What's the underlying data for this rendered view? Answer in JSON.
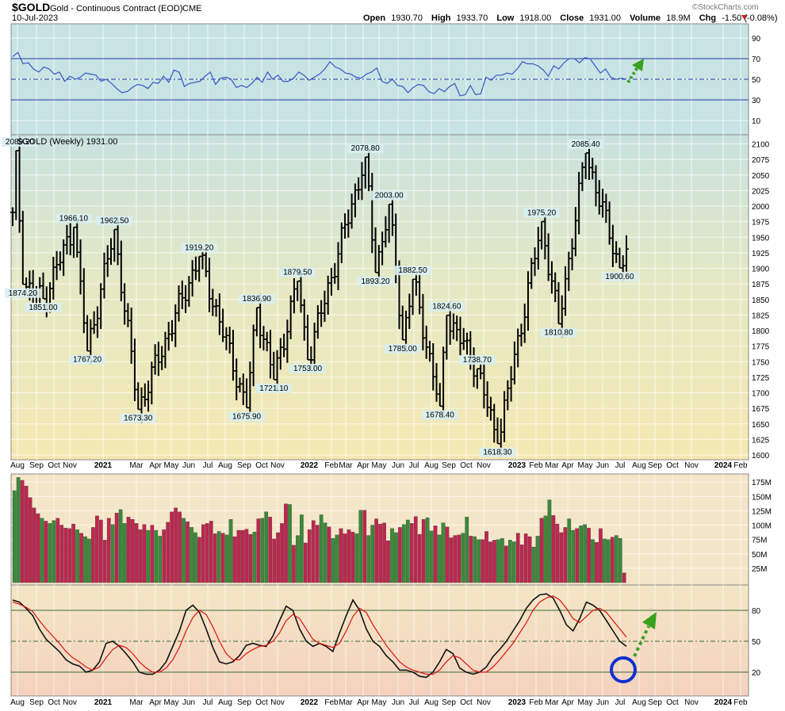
{
  "header": {
    "symbol": "$GOLD",
    "name": "Gold - Continuous Contract (EOD)",
    "exchange": "CME",
    "date": "10-Jul-2023",
    "open_label": "Open",
    "open": "1930.70",
    "high_label": "High",
    "high": "1933.70",
    "low_label": "Low",
    "low": "1918.00",
    "close_label": "Close",
    "close": "1931.00",
    "volume_label": "Volume",
    "volume": "18.9M",
    "chg_label": "Chg",
    "chg": "-1.50 (-0.08%)",
    "watermark": "©StockCharts.com"
  },
  "colors": {
    "up_volume": "#3a8a3a",
    "down_volume": "#c0254f",
    "rsi_line": "#3a55c8",
    "stoch_fast": "#111111",
    "stoch_slow": "#e01010",
    "arrow": "#3aa020",
    "circle": "#1030d0"
  },
  "chart_data": [
    {
      "type": "line",
      "panel": "rsi",
      "y_ticks": [
        "90",
        "70",
        "50",
        "30",
        "10"
      ],
      "ylim": [
        0,
        100
      ],
      "reference_lines": [
        70,
        50,
        30
      ],
      "series": [
        {
          "values": [
            72,
            76,
            65,
            66,
            60,
            57,
            62,
            60,
            55,
            57,
            48,
            53,
            50,
            52,
            56,
            55,
            54,
            48,
            50,
            46,
            41,
            37,
            38,
            42,
            45,
            44,
            41,
            47,
            46,
            53,
            47,
            59,
            57,
            43,
            46,
            47,
            48,
            53,
            57,
            45,
            51,
            52,
            50,
            42,
            44,
            42,
            46,
            52,
            47,
            57,
            50,
            54,
            48,
            48,
            51,
            57,
            54,
            49,
            52,
            55,
            60,
            67,
            62,
            60,
            56,
            55,
            52,
            51,
            55,
            57,
            61,
            48,
            46,
            50,
            44,
            43,
            37,
            42,
            45,
            44,
            38,
            36,
            41,
            38,
            43,
            46,
            34,
            35,
            44,
            35,
            36,
            52,
            49,
            54,
            54,
            56,
            55,
            60,
            67,
            65,
            65,
            63,
            59,
            53,
            63,
            60,
            66,
            70,
            70,
            66,
            71,
            70,
            63,
            56,
            60,
            52,
            50,
            51,
            50
          ]
        }
      ]
    },
    {
      "type": "candlestick",
      "panel": "price",
      "title": "$GOLD (Weekly) 1931.00",
      "y_ticks": [
        "2100",
        "2075",
        "2050",
        "2025",
        "2000",
        "1975",
        "1950",
        "1925",
        "1900",
        "1875",
        "1850",
        "1825",
        "1800",
        "1775",
        "1750",
        "1725",
        "1700",
        "1675",
        "1650",
        "1625",
        "1600"
      ],
      "ylim": [
        1598,
        2110
      ],
      "closes": [
        1990,
        2060,
        1950,
        2040,
        1930,
        1960,
        1890,
        1940,
        1878,
        1870,
        1900,
        1930,
        1905,
        1910,
        1880,
        1850,
        1840,
        1790,
        1860,
        1900,
        1835,
        1890,
        1900,
        1840,
        1860,
        1800,
        1760,
        1740,
        1700,
        1740,
        1715,
        1780,
        1760,
        1790,
        1780,
        1810,
        1870,
        1890,
        1900,
        1910,
        1880,
        1800,
        1770,
        1790,
        1810,
        1830,
        1810,
        1820,
        1760,
        1800,
        1810,
        1830,
        1730,
        1750,
        1760,
        1790,
        1810,
        1790,
        1830,
        1870,
        1775,
        1790,
        1770,
        1810,
        1790,
        1850,
        1800,
        1820,
        1810,
        1790,
        1820,
        1800,
        1830,
        1865,
        1910,
        1965,
        1960,
        1940,
        1920,
        1900,
        1940,
        1930,
        1860,
        1840,
        1810,
        1830,
        1870,
        1860,
        1830,
        1820,
        1780,
        1730,
        1710,
        1720,
        1780,
        1800,
        1810,
        1760,
        1730,
        1700,
        1670,
        1650,
        1700,
        1720,
        1680,
        1660,
        1640,
        1770,
        1760,
        1800,
        1810,
        1830,
        1800,
        1820,
        1880,
        1920,
        1930,
        1900,
        1860,
        1840,
        1820,
        1870,
        1960,
        1980,
        1990,
        2000,
        2020,
        2010,
        1990,
        2000,
        1970,
        1940,
        1970,
        1950,
        1920,
        1930,
        1925,
        1931
      ],
      "annotations": [
        {
          "label": "2089.20",
          "i": 1,
          "hi": true
        },
        {
          "label": "1874.20",
          "i": 3,
          "hi": false
        },
        {
          "label": "1851.00",
          "i": 9,
          "hi": false
        },
        {
          "label": "1966.10",
          "i": 18,
          "hi": true
        },
        {
          "label": "1767.20",
          "i": 22,
          "hi": false
        },
        {
          "label": "1962.50",
          "i": 30,
          "hi": true
        },
        {
          "label": "1673.30",
          "i": 37,
          "hi": false
        },
        {
          "label": "1919.20",
          "i": 55,
          "hi": true
        },
        {
          "label": "1675.90",
          "i": 69,
          "hi": false
        },
        {
          "label": "1836.90",
          "i": 72,
          "hi": true
        },
        {
          "label": "1721.10",
          "i": 77,
          "hi": false
        },
        {
          "label": "1879.50",
          "i": 84,
          "hi": true
        },
        {
          "label": "1753.00",
          "i": 87,
          "hi": false
        },
        {
          "label": "2078.80",
          "i": 104,
          "hi": true
        },
        {
          "label": "1893.20",
          "i": 107,
          "hi": false
        },
        {
          "label": "2003.00",
          "i": 111,
          "hi": true
        },
        {
          "label": "1882.50",
          "i": 118,
          "hi": true
        },
        {
          "label": "1785.00",
          "i": 115,
          "hi": false
        },
        {
          "label": "1824.60",
          "i": 128,
          "hi": true
        },
        {
          "label": "1678.40",
          "i": 126,
          "hi": false
        },
        {
          "label": "1738.70",
          "i": 137,
          "hi": true
        },
        {
          "label": "1618.30",
          "i": 143,
          "hi": false
        },
        {
          "label": "1975.20",
          "i": 156,
          "hi": true
        },
        {
          "label": "1810.80",
          "i": 161,
          "hi": false
        },
        {
          "label": "2085.40",
          "i": 169,
          "hi": true
        },
        {
          "label": "1900.60",
          "i": 179,
          "hi": false
        }
      ],
      "key_points": [
        [
          0,
          1990
        ],
        [
          1,
          2089.2
        ],
        [
          3,
          1874.2
        ],
        [
          9,
          1851
        ],
        [
          18,
          1966.1
        ],
        [
          22,
          1767.2
        ],
        [
          30,
          1962.5
        ],
        [
          37,
          1673.3
        ],
        [
          55,
          1919.2
        ],
        [
          69,
          1675.9
        ],
        [
          72,
          1836.9
        ],
        [
          77,
          1721.1
        ],
        [
          84,
          1879.5
        ],
        [
          87,
          1753
        ],
        [
          104,
          2078.8
        ],
        [
          107,
          1893.2
        ],
        [
          111,
          2003
        ],
        [
          115,
          1785
        ],
        [
          118,
          1882.5
        ],
        [
          126,
          1678.4
        ],
        [
          128,
          1824.6
        ],
        [
          137,
          1738.7
        ],
        [
          143,
          1618.3
        ],
        [
          156,
          1975.2
        ],
        [
          161,
          1810.8
        ],
        [
          169,
          2085.4
        ],
        [
          179,
          1900.6
        ],
        [
          181,
          1931
        ]
      ]
    },
    {
      "type": "bar",
      "panel": "volume",
      "y_ticks": [
        "175M",
        "150M",
        "125M",
        "100M",
        "75M",
        "50M",
        "25M"
      ],
      "ylim": [
        0,
        190
      ],
      "values": [
        160,
        183,
        178,
        168,
        148,
        130,
        120,
        112,
        107,
        103,
        108,
        112,
        100,
        95,
        94,
        102,
        92,
        86,
        80,
        76,
        96,
        116,
        109,
        74,
        112,
        101,
        121,
        127,
        103,
        114,
        110,
        103,
        92,
        101,
        91,
        100,
        91,
        81,
        92,
        105,
        123,
        130,
        123,
        112,
        106,
        96,
        87,
        79,
        101,
        103,
        107,
        85,
        89,
        86,
        83,
        110,
        80,
        91,
        91,
        93,
        84,
        88,
        111,
        112,
        123,
        114,
        76,
        87,
        103,
        137,
        136,
        65,
        82,
        118,
        69,
        92,
        108,
        100,
        118,
        104,
        97,
        77,
        83,
        94,
        85,
        92,
        88,
        85,
        126,
        126,
        82,
        100,
        111,
        102,
        104,
        73,
        94,
        87,
        96,
        101,
        109,
        103,
        115,
        84,
        110,
        113,
        90,
        99,
        83,
        104,
        97,
        78,
        82,
        83,
        86,
        114,
        81,
        80,
        75,
        75,
        89,
        71,
        74,
        75,
        77,
        64,
        74,
        71,
        86,
        66,
        85,
        80,
        62,
        81,
        112,
        116,
        144,
        117,
        102,
        87,
        96,
        111,
        91,
        94,
        99,
        101,
        95,
        75,
        70,
        94,
        76,
        75,
        79,
        82,
        77,
        17
      ]
    },
    {
      "type": "line",
      "panel": "stochastic",
      "y_ticks": [
        "80",
        "50",
        "20"
      ],
      "ylim": [
        0,
        105
      ],
      "reference_lines": [
        80,
        50,
        20
      ],
      "series": [
        {
          "values": [
            90,
            88,
            82,
            75,
            62,
            52,
            46,
            40,
            32,
            28,
            26,
            20,
            22,
            30,
            48,
            50,
            45,
            38,
            30,
            20,
            18,
            18,
            22,
            30,
            45,
            60,
            80,
            85,
            78,
            62,
            44,
            30,
            28,
            30,
            36,
            46,
            48,
            46,
            45,
            55,
            70,
            84,
            80,
            62,
            50,
            45,
            48,
            45,
            40,
            58,
            75,
            90,
            80,
            62,
            50,
            45,
            36,
            30,
            22,
            22,
            20,
            16,
            15,
            20,
            30,
            42,
            38,
            24,
            20,
            18,
            20,
            25,
            35,
            42,
            50,
            60,
            70,
            82,
            90,
            95,
            96,
            92,
            80,
            66,
            60,
            72,
            88,
            85,
            80,
            70,
            60,
            50,
            45
          ]
        },
        {
          "values": [
            88,
            86,
            83,
            79,
            70,
            62,
            55,
            48,
            40,
            34,
            30,
            25,
            22,
            25,
            34,
            42,
            46,
            44,
            38,
            30,
            24,
            20,
            20,
            24,
            32,
            44,
            60,
            73,
            80,
            76,
            64,
            50,
            38,
            32,
            32,
            38,
            42,
            45,
            46,
            50,
            58,
            70,
            76,
            72,
            62,
            52,
            48,
            46,
            44,
            48,
            60,
            74,
            82,
            78,
            66,
            56,
            46,
            38,
            30,
            25,
            22,
            20,
            18,
            18,
            22,
            30,
            36,
            34,
            28,
            22,
            20,
            20,
            25,
            32,
            40,
            48,
            58,
            68,
            80,
            88,
            92,
            94,
            90,
            82,
            72,
            68,
            74,
            80,
            82,
            78,
            70,
            62,
            54
          ]
        }
      ]
    }
  ],
  "x_axis_labels": [
    "Aug",
    "Sep",
    "Oct",
    "Nov",
    "2021",
    "Mar",
    "Apr",
    "May",
    "Jun",
    "Jul",
    "Aug",
    "Sep",
    "Oct",
    "Nov",
    "2022",
    "Feb",
    "Mar",
    "Apr",
    "May",
    "Jun",
    "Jul",
    "Aug",
    "Sep",
    "Oct",
    "Nov",
    "2023",
    "Feb",
    "Mar",
    "Apr",
    "May",
    "Jun",
    "Jul",
    "Aug",
    "Sep",
    "Oct",
    "Nov",
    "2024",
    "Feb"
  ]
}
